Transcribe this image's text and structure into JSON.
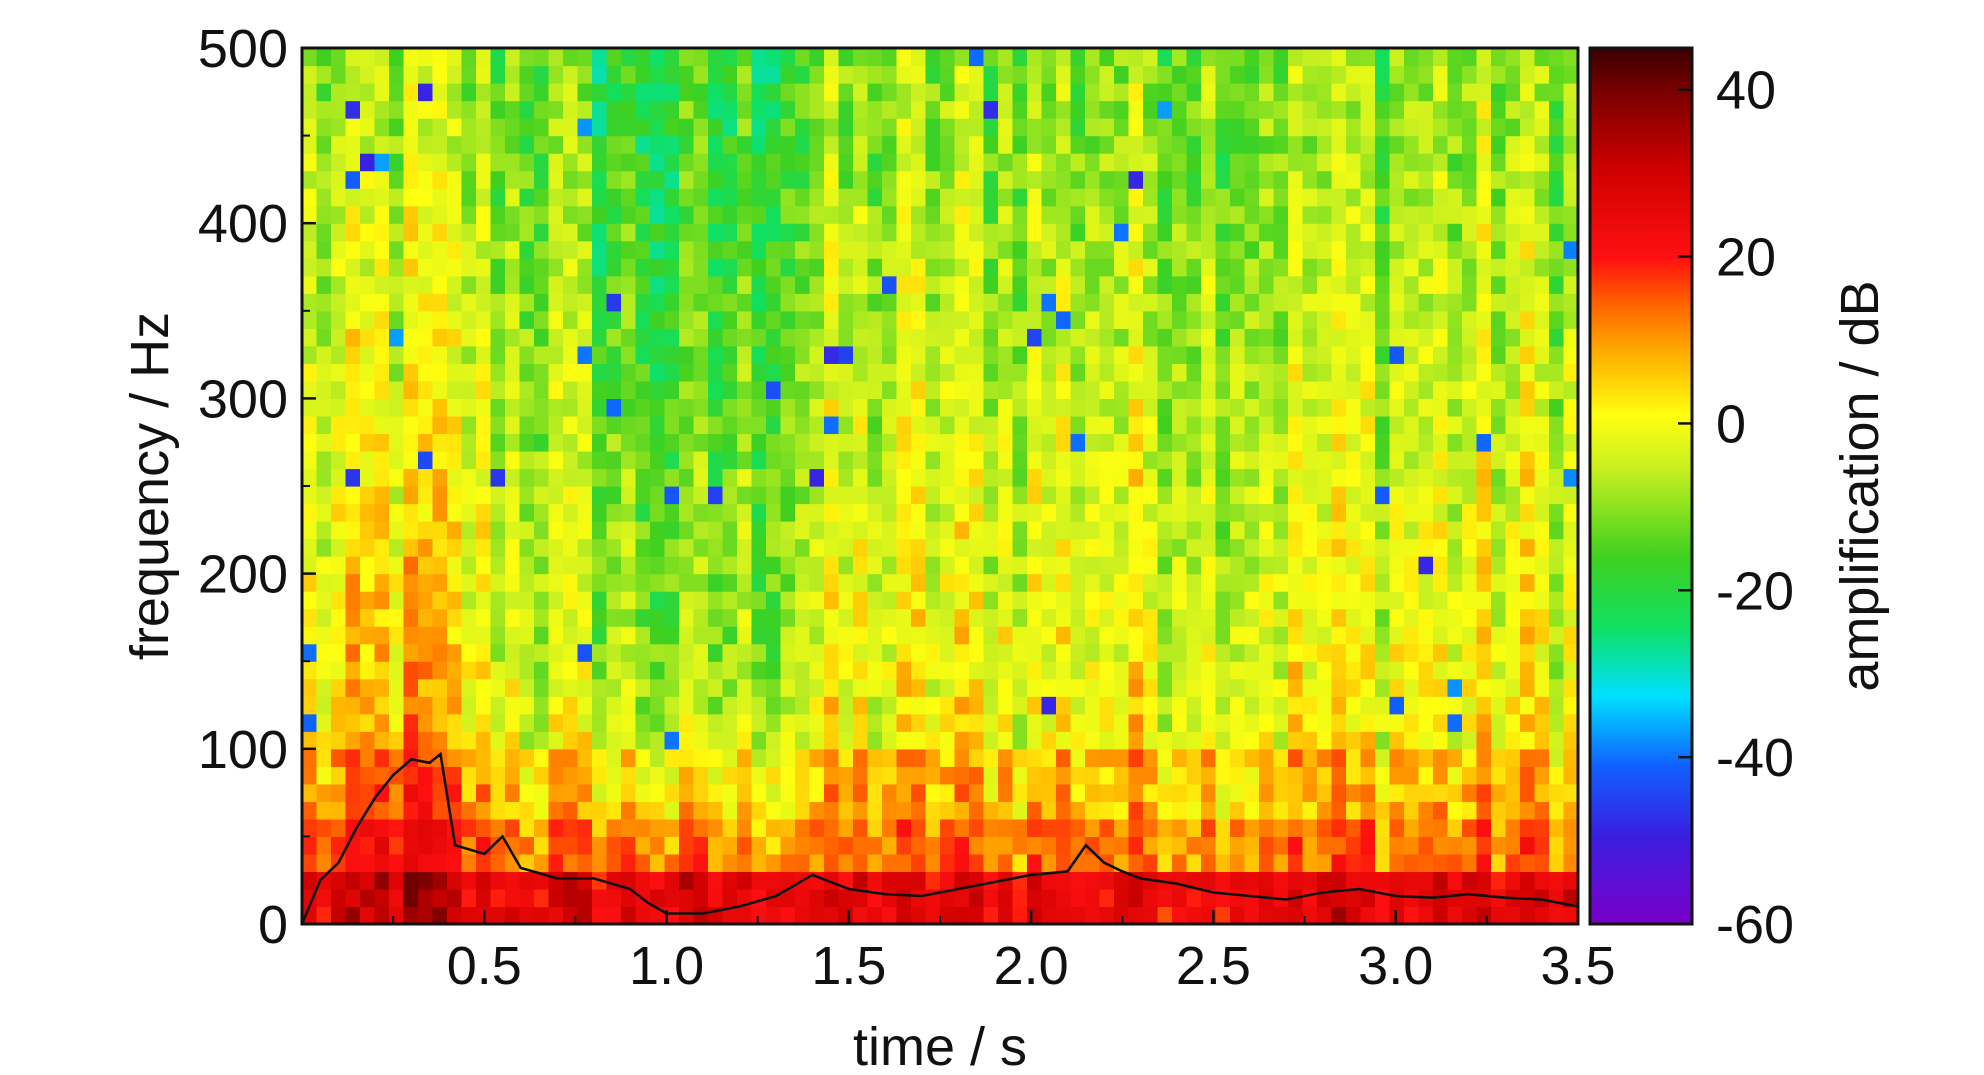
{
  "chart_data": {
    "type": "heatmap",
    "title": "",
    "xlabel": "time / s",
    "ylabel": "frequency / Hz",
    "colorbar_label": "amplification / dB",
    "xlim": [
      0,
      3.5
    ],
    "ylim": [
      0,
      500
    ],
    "clim": [
      -60,
      45
    ],
    "x_ticks": [
      0.5,
      1.0,
      1.5,
      2.0,
      2.5,
      3.0,
      3.5
    ],
    "x_tick_labels": [
      "0.5",
      "1.0",
      "1.5",
      "2.0",
      "2.5",
      "3.0",
      "3.5"
    ],
    "y_ticks": [
      0,
      100,
      200,
      300,
      400,
      500
    ],
    "y_tick_labels": [
      "0",
      "100",
      "200",
      "300",
      "400",
      "500"
    ],
    "colorbar_ticks": [
      40,
      20,
      0,
      -20,
      -40,
      -60
    ],
    "colorbar_tick_labels": [
      "40",
      "20",
      "0",
      "-20",
      "-40",
      "-60"
    ],
    "colormap": [
      "#6a0dad",
      "#2020ff",
      "#00e5ff",
      "#30d030",
      "#b0f030",
      "#ffff00",
      "#ffa500",
      "#ff0000",
      "#d00000",
      "#400000"
    ],
    "grid": false,
    "heatmap": {
      "time_bins": 88,
      "freq_bins": 50,
      "description_of_trend": "amplification is highest (above 20 dB, dark red) below 30 Hz across all times, strongest near 0.25-0.35 s; mid-range 0 to -15 dB (orange/yellow) dominates 30-500 Hz; minimum values (-20 to -35 dB, green/cyan) occur around 0.9-1.2 s above 200 Hz"
    },
    "series": [
      {
        "type": "line",
        "color": "#111111",
        "x": [
          0.0,
          0.05,
          0.1,
          0.15,
          0.2,
          0.25,
          0.3,
          0.35,
          0.38,
          0.42,
          0.5,
          0.55,
          0.6,
          0.7,
          0.8,
          0.9,
          0.95,
          1.0,
          1.1,
          1.2,
          1.3,
          1.35,
          1.4,
          1.5,
          1.6,
          1.7,
          1.8,
          1.9,
          2.0,
          2.1,
          2.15,
          2.2,
          2.25,
          2.3,
          2.4,
          2.5,
          2.6,
          2.7,
          2.8,
          2.9,
          3.0,
          3.1,
          3.2,
          3.3,
          3.4,
          3.5
        ],
        "y": [
          0,
          25,
          35,
          55,
          72,
          85,
          94,
          92,
          97,
          45,
          40,
          50,
          32,
          26,
          26,
          20,
          12,
          6,
          6,
          10,
          16,
          22,
          28,
          20,
          17,
          16,
          20,
          24,
          28,
          30,
          45,
          35,
          30,
          26,
          23,
          18,
          16,
          14,
          18,
          20,
          16,
          15,
          17,
          15,
          14,
          10
        ]
      }
    ]
  }
}
